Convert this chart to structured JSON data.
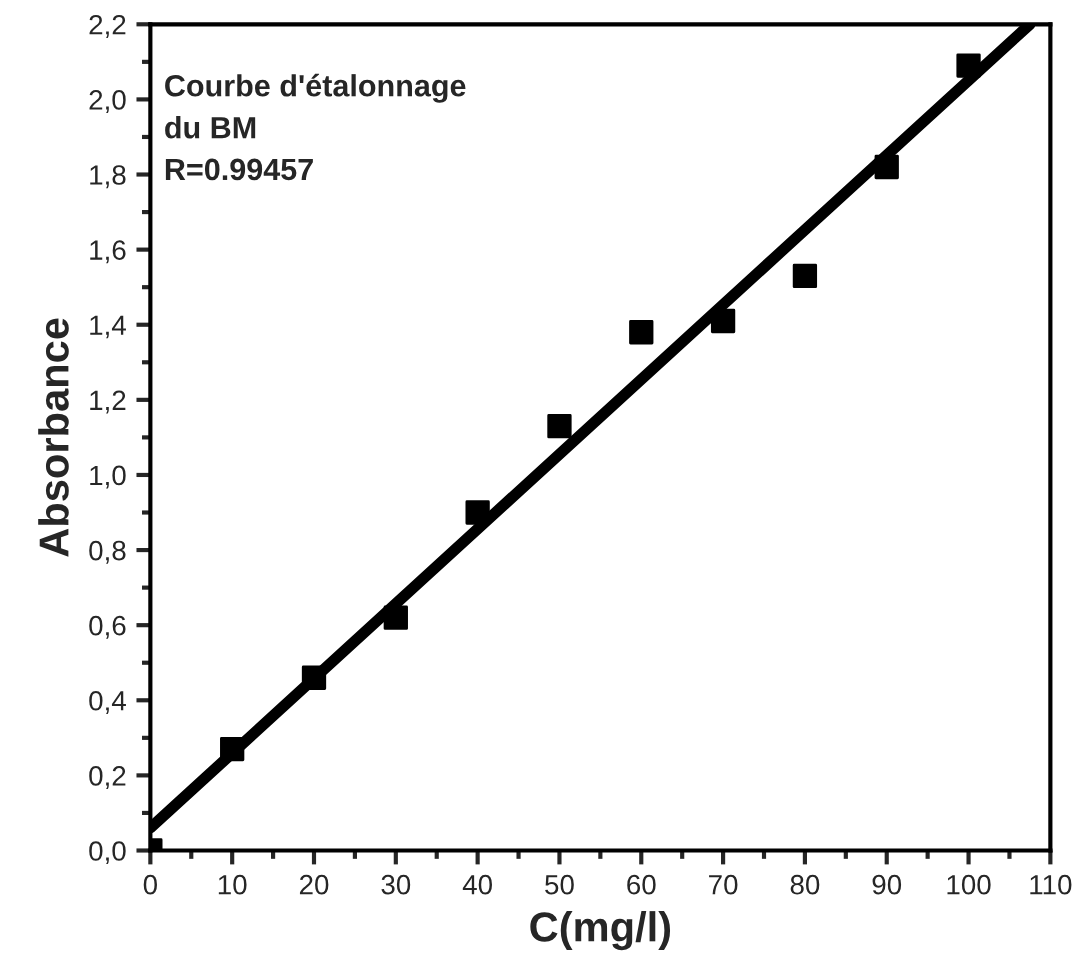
{
  "chart_data": {
    "type": "scatter",
    "xlabel": "C(mg/l)",
    "ylabel": "Absorbance",
    "annotations": [
      "Courbe d'étalonnage\ndu BM\nR=0.99457"
    ],
    "x": [
      0,
      10,
      20,
      30,
      40,
      50,
      60,
      70,
      80,
      90,
      100
    ],
    "series": [
      {
        "color": "#000000",
        "marker": "square",
        "values": [
          0.0,
          0.27,
          0.46,
          0.62,
          0.9,
          1.13,
          1.38,
          1.41,
          1.53,
          1.82,
          2.09
        ]
      },
      {
        "type": "line",
        "color": "#000000",
        "x": [
          0,
          107.5
        ],
        "values": [
          0.06,
          2.2
        ]
      }
    ],
    "xlim": [
      0,
      110
    ],
    "xticks": [
      0,
      10,
      20,
      30,
      40,
      50,
      60,
      70,
      80,
      90,
      100,
      110
    ],
    "ylim": [
      0,
      2.2
    ],
    "yticks": [
      {
        "value": 0,
        "label": "0,0"
      },
      {
        "value": 0.2,
        "label": "0,2"
      },
      {
        "value": 0.4,
        "label": "0,4"
      },
      {
        "value": 0.6,
        "label": "0,6"
      },
      {
        "value": 0.8,
        "label": "0,8"
      },
      {
        "value": 1.0,
        "label": "1,0"
      },
      {
        "value": 1.2,
        "label": "1,2"
      },
      {
        "value": 1.4,
        "label": "1,4"
      },
      {
        "value": 1.6,
        "label": "1,6"
      },
      {
        "value": 1.8,
        "label": "1,8"
      },
      {
        "value": 2.0,
        "label": "2,0"
      },
      {
        "value": 2.2,
        "label": "2,2"
      }
    ],
    "grid": false,
    "legend": false
  }
}
